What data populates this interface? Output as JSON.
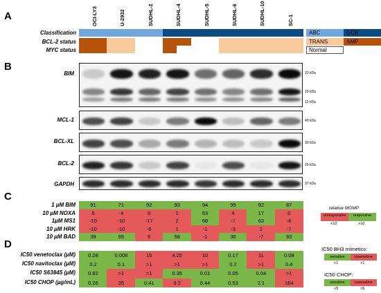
{
  "panels": {
    "a": "A",
    "b": "B",
    "c": "C",
    "d": "D"
  },
  "cell_lines": [
    "OCI-LY3",
    "U-2932",
    "SUDHL-2",
    "SUDHL-4",
    "SUDHL-5",
    "SUDHL-6",
    "SUDHL-10",
    "SC-1"
  ],
  "panel_a": {
    "rows": [
      "Classification",
      "BCL-2 status",
      "MYC status"
    ],
    "legend": {
      "abc": "ABC",
      "gcb": "GCB",
      "trans": "TRANS",
      "amp": "AMP",
      "normal": "Normal"
    },
    "colors": {
      "abc": "#6fa8dc",
      "gcb": "#0b4a83",
      "trans": "#f9cb9c",
      "amp": "#b45309",
      "normal": "#ffffff"
    }
  },
  "panel_b": {
    "blots": [
      {
        "label": "BIM",
        "markers": [
          "23 kDa",
          "15 kDa",
          "12 kDa"
        ]
      },
      {
        "label": "MCL-1",
        "markers": [
          "40 kDa"
        ]
      },
      {
        "label": "BCL-XL",
        "markers": [
          "30 kDa"
        ]
      },
      {
        "label": "BCL-2",
        "markers": [
          "25 kDa"
        ]
      },
      {
        "label": "GAPDH",
        "markers": [
          "37 kDa"
        ]
      }
    ]
  },
  "panel_c": {
    "rows": [
      {
        "label": "1 µM BIM",
        "values": [
          "91",
          "71",
          "92",
          "93",
          "94",
          "95",
          "92",
          "87"
        ]
      },
      {
        "label": "10 µM NOXA",
        "values": [
          "5",
          "-4",
          "0",
          "2",
          "53",
          "4",
          "17",
          "0"
        ]
      },
      {
        "label": "1µM MS1",
        "values": [
          "-10",
          "-10",
          "-17",
          "2",
          "68",
          "-7",
          "63",
          "-6"
        ]
      },
      {
        "label": "10 µM HRK",
        "values": [
          "-10",
          "-10",
          "-6",
          "1",
          "-1",
          "-3",
          "2",
          "-7"
        ]
      },
      {
        "label": "10 µM BAD",
        "values": [
          "39",
          "65",
          "5",
          "58",
          "-1",
          "30",
          "-7",
          "93"
        ]
      }
    ],
    "legend": {
      "title": "relative MOMP",
      "unresponsive": "unresponsive",
      "responsive": "responsive",
      "low": "<10",
      "high": ">10"
    }
  },
  "panel_d": {
    "rows": [
      {
        "label": "IC50 venetoclax (µM)",
        "values": [
          "0.28",
          "0.008",
          "15",
          "4.25",
          "10",
          "0.17",
          "11",
          "0.08"
        ]
      },
      {
        "label": "IC50 navitoclax (µM)",
        "values": [
          "0.2",
          "0.1",
          ">1",
          ">1",
          ">1",
          "0.2",
          ">1",
          "0.4"
        ]
      },
      {
        "label": "IC50 S63845 (µM)",
        "values": [
          "0.82",
          ">1",
          ">1",
          "0.35",
          "0.01",
          "0.05",
          "0.04",
          ">1"
        ]
      },
      {
        "label": "IC50 CHOP (µg/mL)",
        "values": [
          "0.26",
          "35",
          "0.41",
          "5.3",
          "0.44",
          "0.53",
          "2.1",
          "184"
        ]
      }
    ],
    "legend_bh3": {
      "title": "IC50 BH3 mimetics:",
      "sensitive": "sensitive",
      "insensitive": "insensitive",
      "low": "<1",
      "high": ">1"
    },
    "legend_chop": {
      "title": "IC50 CHOP:",
      "sensitive": "sensitive",
      "insensitive": "insensitive",
      "low": "<5",
      "high": ">5"
    }
  },
  "colors": {
    "green": "#7ab648",
    "red": "#e4595a"
  }
}
